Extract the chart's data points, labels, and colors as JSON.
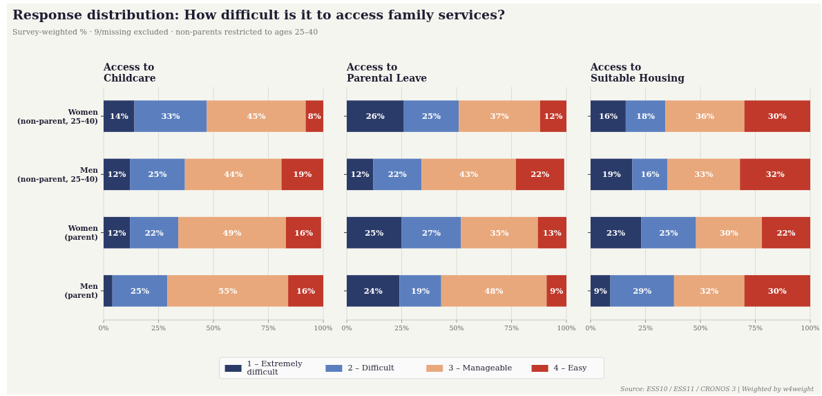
{
  "chart_data": [
    {
      "type": "bar",
      "orientation": "horizontal",
      "stacked": true,
      "title": "Access to\nChildcare",
      "legend": "bottom",
      "grid": "x",
      "annotations": [
        "Response distribution: How difficult is it to access family services?",
        "Survey-weighted % · 9/missing excluded · non-parents restricted to ages 25–40",
        "Source: ESS10 / ESS11 / CRONOS 3  |  Weighted by w4weight"
      ],
      "categories": [
        "Women\n(non-parent, 25–40)",
        "Men\n(non-parent, 25–40)",
        "Women\n(parent)",
        "Men\n(parent)"
      ],
      "xlim": [
        0,
        100
      ],
      "xticks": [
        {
          "value": 0,
          "label": "0%"
        },
        {
          "value": 25,
          "label": "25%"
        },
        {
          "value": 50,
          "label": "50%"
        },
        {
          "value": 75,
          "label": "75%"
        },
        {
          "value": 100,
          "label": "100%"
        }
      ],
      "series": [
        {
          "name": "1 – Extremely difficult",
          "color": "#2b3b69",
          "values": [
            14,
            12,
            12,
            4
          ],
          "value_labels": [
            "14%",
            "12%",
            "12%",
            null
          ]
        },
        {
          "name": "2 – Difficult",
          "color": "#5b7fbe",
          "values": [
            33,
            25,
            22,
            25
          ],
          "value_labels": [
            "33%",
            "25%",
            "22%",
            "25%"
          ]
        },
        {
          "name": "3 – Manageable",
          "color": "#e8a87c",
          "values": [
            45,
            44,
            49,
            55
          ],
          "value_labels": [
            "45%",
            "44%",
            "49%",
            "55%"
          ]
        },
        {
          "name": "4 – Easy",
          "color": "#c0392b",
          "values": [
            8,
            19,
            16,
            16
          ],
          "value_labels": [
            "8%",
            "19%",
            "16%",
            "16%"
          ]
        }
      ]
    },
    {
      "type": "bar",
      "orientation": "horizontal",
      "stacked": true,
      "title": "Access to\nParental Leave",
      "grid": "x",
      "tick_labels": "x",
      "categories": [
        null,
        null,
        null,
        null
      ],
      "xlim": [
        0,
        100
      ],
      "xticks": [
        {
          "value": 0,
          "label": "0%"
        },
        {
          "value": 25,
          "label": "25%"
        },
        {
          "value": 50,
          "label": "50%"
        },
        {
          "value": 75,
          "label": "75%"
        },
        {
          "value": 100,
          "label": "100%"
        }
      ],
      "series": [
        {
          "color": "#2b3b69",
          "values": [
            26,
            12,
            25,
            24
          ],
          "value_labels": [
            "26%",
            "12%",
            "25%",
            "24%"
          ]
        },
        {
          "color": "#5b7fbe",
          "values": [
            25,
            22,
            27,
            19
          ],
          "value_labels": [
            "25%",
            "22%",
            "27%",
            "19%"
          ]
        },
        {
          "color": "#e8a87c",
          "values": [
            37,
            43,
            35,
            48
          ],
          "value_labels": [
            "37%",
            "43%",
            "35%",
            "48%"
          ]
        },
        {
          "color": "#c0392b",
          "values": [
            12,
            22,
            13,
            9
          ],
          "value_labels": [
            "12%",
            "22%",
            "13%",
            "9%"
          ]
        }
      ]
    },
    {
      "type": "bar",
      "orientation": "horizontal",
      "stacked": true,
      "title": "Access to\nSuitable Housing",
      "grid": "x",
      "tick_labels": "x",
      "categories": [
        null,
        null,
        null,
        null
      ],
      "xlim": [
        0,
        100
      ],
      "xticks": [
        {
          "value": 0,
          "label": "0%"
        },
        {
          "value": 25,
          "label": "25%"
        },
        {
          "value": 50,
          "label": "50%"
        },
        {
          "value": 75,
          "label": "75%"
        },
        {
          "value": 100,
          "label": "100%"
        }
      ],
      "series": [
        {
          "color": "#2b3b69",
          "values": [
            16,
            19,
            23,
            9
          ],
          "value_labels": [
            "16%",
            "19%",
            "23%",
            "9%"
          ]
        },
        {
          "color": "#5b7fbe",
          "values": [
            18,
            16,
            25,
            29
          ],
          "value_labels": [
            "18%",
            "16%",
            "25%",
            "29%"
          ]
        },
        {
          "color": "#e8a87c",
          "values": [
            36,
            33,
            30,
            32
          ],
          "value_labels": [
            "36%",
            "33%",
            "30%",
            "32%"
          ]
        },
        {
          "color": "#c0392b",
          "values": [
            30,
            32,
            22,
            30
          ],
          "value_labels": [
            "30%",
            "32%",
            "22%",
            "30%"
          ]
        }
      ]
    }
  ]
}
